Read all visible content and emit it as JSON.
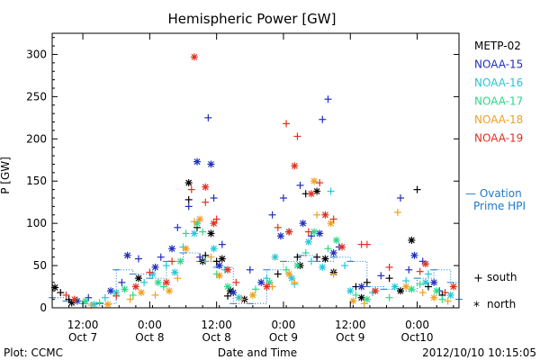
{
  "chart_data": {
    "type": "scatter",
    "title": "Hemispheric Power [GW]",
    "ylabel": "P [GW]",
    "xlabel": "Date and Time",
    "ylim": [
      0,
      325
    ],
    "xlim": [
      "2012-10-07 06:30",
      "2012-10-10 07:30"
    ],
    "yticks": [
      "0",
      "50",
      "100",
      "150",
      "200",
      "250",
      "300"
    ],
    "xtick_labels": [
      {
        "time": "2012-10-07 12:00",
        "line1": "12:00",
        "line2": "Oct 7"
      },
      {
        "time": "2012-10-08 00:00",
        "line1": "0:00",
        "line2": "Oct 8"
      },
      {
        "time": "2012-10-08 12:00",
        "line1": "12:00",
        "line2": "Oct 8"
      },
      {
        "time": "2012-10-09 00:00",
        "line1": "0:00",
        "line2": "Oct 9"
      },
      {
        "time": "2012-10-09 12:00",
        "line1": "12:00",
        "line2": "Oct 9"
      },
      {
        "time": "2012-10-10 00:00",
        "line1": "0:00",
        "line2": "Oct10"
      }
    ],
    "grid": false,
    "legend_placement": "right",
    "series": [
      {
        "name": "METP-02",
        "color": "#000000",
        "south": [
          [
            "2012-10-07 08:00",
            18
          ],
          [
            "2012-10-07 09:30",
            10
          ],
          [
            "2012-10-08 07:00",
            128
          ],
          [
            "2012-10-08 08:30",
            95
          ],
          [
            "2012-10-08 10:00",
            62
          ],
          [
            "2012-10-08 12:00",
            55
          ],
          [
            "2012-10-08 14:00",
            14
          ],
          [
            "2012-10-08 23:00",
            40
          ],
          [
            "2012-10-09 01:00",
            90
          ],
          [
            "2012-10-09 02:30",
            60
          ],
          [
            "2012-10-09 04:00",
            135
          ],
          [
            "2012-10-09 06:00",
            60
          ],
          [
            "2012-10-09 13:00",
            25
          ],
          [
            "2012-10-09 15:00",
            30
          ],
          [
            "2012-10-09 19:00",
            35
          ],
          [
            "2012-10-10 00:00",
            140
          ],
          [
            "2012-10-10 02:00",
            25
          ],
          [
            "2012-10-10 04:30",
            15
          ]
        ],
        "north": [
          [
            "2012-10-07 07:00",
            24
          ],
          [
            "2012-10-07 10:00",
            6
          ],
          [
            "2012-10-07 22:00",
            35
          ],
          [
            "2012-10-08 07:00",
            148
          ],
          [
            "2012-10-08 09:30",
            55
          ],
          [
            "2012-10-08 11:00",
            88
          ],
          [
            "2012-10-08 13:00",
            58
          ],
          [
            "2012-10-08 14:30",
            20
          ],
          [
            "2012-10-08 17:00",
            10
          ],
          [
            "2012-10-09 03:00",
            50
          ],
          [
            "2012-10-09 06:00",
            138
          ],
          [
            "2012-10-09 07:30",
            58
          ],
          [
            "2012-10-09 09:00",
            42
          ],
          [
            "2012-10-09 14:00",
            12
          ],
          [
            "2012-10-09 21:00",
            20
          ],
          [
            "2012-10-09 23:00",
            80
          ]
        ]
      },
      {
        "name": "NOAA-15",
        "color": "#1f2fbf",
        "south": [
          [
            "2012-10-07 13:00",
            12
          ],
          [
            "2012-10-07 19:00",
            30
          ],
          [
            "2012-10-07 22:00",
            58
          ],
          [
            "2012-10-08 02:00",
            60
          ],
          [
            "2012-10-08 05:00",
            95
          ],
          [
            "2012-10-08 07:00",
            120
          ],
          [
            "2012-10-08 09:00",
            60
          ],
          [
            "2012-10-08 10:30",
            225
          ],
          [
            "2012-10-08 11:30",
            130
          ],
          [
            "2012-10-08 13:00",
            75
          ],
          [
            "2012-10-08 18:00",
            45
          ],
          [
            "2012-10-08 22:00",
            110
          ],
          [
            "2012-10-09 00:00",
            130
          ],
          [
            "2012-10-09 03:00",
            145
          ],
          [
            "2012-10-09 05:00",
            85
          ],
          [
            "2012-10-09 07:00",
            223
          ],
          [
            "2012-10-09 08:00",
            247
          ],
          [
            "2012-10-09 10:00",
            72
          ],
          [
            "2012-10-09 17:30",
            38
          ],
          [
            "2012-10-09 21:00",
            130
          ],
          [
            "2012-10-09 22:30",
            45
          ],
          [
            "2012-10-10 01:00",
            55
          ],
          [
            "2012-10-10 04:00",
            20
          ]
        ],
        "north": [
          [
            "2012-10-07 11:00",
            8
          ],
          [
            "2012-10-07 17:00",
            20
          ],
          [
            "2012-10-07 20:00",
            62
          ],
          [
            "2012-10-08 01:00",
            48
          ],
          [
            "2012-10-08 04:00",
            70
          ],
          [
            "2012-10-08 08:30",
            173
          ],
          [
            "2012-10-08 11:00",
            170
          ],
          [
            "2012-10-08 12:30",
            50
          ],
          [
            "2012-10-08 15:00",
            18
          ],
          [
            "2012-10-08 20:00",
            30
          ],
          [
            "2012-10-08 23:30",
            85
          ],
          [
            "2012-10-09 03:30",
            100
          ],
          [
            "2012-10-09 06:30",
            88
          ],
          [
            "2012-10-09 09:00",
            65
          ],
          [
            "2012-10-09 14:00",
            25
          ],
          [
            "2012-10-09 23:30",
            62
          ],
          [
            "2012-10-10 03:00",
            30
          ]
        ]
      },
      {
        "name": "NOAA-16",
        "color": "#22c8d8",
        "south": [
          [
            "2012-10-07 12:00",
            5
          ],
          [
            "2012-10-07 16:00",
            12
          ],
          [
            "2012-10-07 23:00",
            30
          ],
          [
            "2012-10-08 03:00",
            50
          ],
          [
            "2012-10-08 06:00",
            72
          ],
          [
            "2012-10-08 10:00",
            55
          ],
          [
            "2012-10-08 13:30",
            45
          ],
          [
            "2012-10-08 21:00",
            35
          ],
          [
            "2012-10-09 02:00",
            28
          ],
          [
            "2012-10-09 05:00",
            55
          ],
          [
            "2012-10-09 08:30",
            138
          ],
          [
            "2012-10-09 11:00",
            50
          ],
          [
            "2012-10-09 16:00",
            18
          ],
          [
            "2012-10-09 22:00",
            32
          ],
          [
            "2012-10-10 02:00",
            40
          ],
          [
            "2012-10-10 05:00",
            18
          ]
        ],
        "north": [
          [
            "2012-10-07 14:00",
            4
          ],
          [
            "2012-10-07 18:00",
            18
          ],
          [
            "2012-10-08 00:30",
            40
          ],
          [
            "2012-10-08 04:30",
            42
          ],
          [
            "2012-10-08 08:00",
            88
          ],
          [
            "2012-10-08 11:30",
            70
          ],
          [
            "2012-10-08 16:00",
            12
          ],
          [
            "2012-10-08 22:30",
            60
          ],
          [
            "2012-10-09 01:30",
            35
          ],
          [
            "2012-10-09 04:30",
            78
          ],
          [
            "2012-10-09 07:00",
            48
          ],
          [
            "2012-10-09 12:00",
            20
          ],
          [
            "2012-10-09 20:00",
            25
          ],
          [
            "2012-10-10 01:30",
            30
          ],
          [
            "2012-10-10 06:00",
            15
          ]
        ]
      },
      {
        "name": "NOAA-17",
        "color": "#2bd98a",
        "south": [
          [
            "2012-10-07 15:00",
            6
          ],
          [
            "2012-10-07 21:00",
            15
          ],
          [
            "2012-10-08 02:30",
            25
          ],
          [
            "2012-10-08 06:30",
            88
          ],
          [
            "2012-10-08 09:30",
            90
          ],
          [
            "2012-10-08 12:00",
            40
          ],
          [
            "2012-10-08 19:00",
            22
          ],
          [
            "2012-10-09 00:30",
            45
          ],
          [
            "2012-10-09 04:00",
            65
          ],
          [
            "2012-10-09 08:00",
            70
          ],
          [
            "2012-10-09 13:00",
            15
          ],
          [
            "2012-10-09 19:00",
            12
          ],
          [
            "2012-10-10 00:30",
            28
          ],
          [
            "2012-10-10 04:30",
            10
          ]
        ],
        "north": [
          [
            "2012-10-07 12:30",
            8
          ],
          [
            "2012-10-07 19:30",
            22
          ],
          [
            "2012-10-08 01:30",
            30
          ],
          [
            "2012-10-08 05:30",
            55
          ],
          [
            "2012-10-08 08:30",
            100
          ],
          [
            "2012-10-08 14:00",
            25
          ],
          [
            "2012-10-08 21:30",
            30
          ],
          [
            "2012-10-09 02:30",
            50
          ],
          [
            "2012-10-09 05:30",
            90
          ],
          [
            "2012-10-09 09:30",
            80
          ],
          [
            "2012-10-09 15:00",
            10
          ],
          [
            "2012-10-09 23:00",
            22
          ],
          [
            "2012-10-10 03:30",
            20
          ]
        ]
      },
      {
        "name": "NOAA-18",
        "color": "#f0a020",
        "south": [
          [
            "2012-10-07 13:30",
            3
          ],
          [
            "2012-10-07 20:30",
            10
          ],
          [
            "2012-10-08 01:00",
            15
          ],
          [
            "2012-10-08 05:00",
            35
          ],
          [
            "2012-10-08 08:00",
            102
          ],
          [
            "2012-10-08 11:00",
            60
          ],
          [
            "2012-10-08 16:30",
            10
          ],
          [
            "2012-10-08 22:00",
            25
          ],
          [
            "2012-10-09 02:00",
            30
          ],
          [
            "2012-10-09 06:00",
            110
          ],
          [
            "2012-10-09 09:00",
            40
          ],
          [
            "2012-10-09 14:30",
            5
          ],
          [
            "2012-10-09 20:30",
            113
          ],
          [
            "2012-10-10 01:00",
            18
          ],
          [
            "2012-10-10 05:30",
            8
          ]
        ],
        "north": [
          [
            "2012-10-07 16:30",
            4
          ],
          [
            "2012-10-07 22:30",
            18
          ],
          [
            "2012-10-08 03:30",
            20
          ],
          [
            "2012-10-08 06:30",
            70
          ],
          [
            "2012-10-08 09:00",
            105
          ],
          [
            "2012-10-08 12:30",
            38
          ],
          [
            "2012-10-08 18:30",
            15
          ],
          [
            "2012-10-09 01:00",
            40
          ],
          [
            "2012-10-09 05:30",
            150
          ],
          [
            "2012-10-09 08:30",
            100
          ],
          [
            "2012-10-09 12:30",
            8
          ],
          [
            "2012-10-09 22:00",
            25
          ],
          [
            "2012-10-10 03:00",
            12
          ]
        ]
      },
      {
        "name": "NOAA-19",
        "color": "#e0301e",
        "south": [
          [
            "2012-10-07 09:00",
            15
          ],
          [
            "2012-10-07 18:00",
            14
          ],
          [
            "2012-10-08 00:00",
            42
          ],
          [
            "2012-10-08 04:00",
            55
          ],
          [
            "2012-10-08 07:30",
            140
          ],
          [
            "2012-10-08 10:00",
            125
          ],
          [
            "2012-10-08 12:00",
            105
          ],
          [
            "2012-10-08 15:30",
            30
          ],
          [
            "2012-10-08 23:00",
            95
          ],
          [
            "2012-10-09 00:30",
            218
          ],
          [
            "2012-10-09 02:30",
            203
          ],
          [
            "2012-10-09 04:30",
            90
          ],
          [
            "2012-10-09 06:30",
            148
          ],
          [
            "2012-10-09 09:00",
            105
          ],
          [
            "2012-10-09 14:00",
            75
          ],
          [
            "2012-10-09 15:00",
            75
          ],
          [
            "2012-10-09 19:00",
            48
          ],
          [
            "2012-10-10 00:30",
            43
          ],
          [
            "2012-10-10 05:00",
            18
          ]
        ],
        "north": [
          [
            "2012-10-07 10:30",
            10
          ],
          [
            "2012-10-07 21:30",
            25
          ],
          [
            "2012-10-08 03:00",
            30
          ],
          [
            "2012-10-08 08:00",
            297
          ],
          [
            "2012-10-08 10:00",
            143
          ],
          [
            "2012-10-08 11:30",
            100
          ],
          [
            "2012-10-08 14:00",
            45
          ],
          [
            "2012-10-08 21:00",
            25
          ],
          [
            "2012-10-09 01:00",
            90
          ],
          [
            "2012-10-09 02:00",
            168
          ],
          [
            "2012-10-09 05:00",
            135
          ],
          [
            "2012-10-09 07:30",
            110
          ],
          [
            "2012-10-09 10:30",
            72
          ],
          [
            "2012-10-09 16:30",
            20
          ],
          [
            "2012-10-10 01:30",
            52
          ],
          [
            "2012-10-10 06:30",
            25
          ]
        ]
      }
    ],
    "ovation": {
      "label_line1": "— Ovation",
      "label_line2": "Prime HPI",
      "color": "#1f78c8",
      "points": [
        [
          "2012-10-07 06:30",
          12
        ],
        [
          "2012-10-07 09:00",
          8
        ],
        [
          "2012-10-07 12:00",
          5
        ],
        [
          "2012-10-07 15:00",
          5
        ],
        [
          "2012-10-07 18:00",
          45
        ],
        [
          "2012-10-07 21:00",
          40
        ],
        [
          "2012-10-08 00:00",
          35
        ],
        [
          "2012-10-08 03:00",
          55
        ],
        [
          "2012-10-08 06:00",
          65
        ],
        [
          "2012-10-08 09:00",
          55
        ],
        [
          "2012-10-08 12:00",
          48
        ],
        [
          "2012-10-08 15:00",
          5
        ],
        [
          "2012-10-08 18:00",
          5
        ],
        [
          "2012-10-08 21:00",
          45
        ],
        [
          "2012-10-09 00:00",
          55
        ],
        [
          "2012-10-09 03:00",
          62
        ],
        [
          "2012-10-09 06:00",
          55
        ],
        [
          "2012-10-09 09:00",
          60
        ],
        [
          "2012-10-09 12:00",
          55
        ],
        [
          "2012-10-09 15:00",
          25
        ],
        [
          "2012-10-09 18:00",
          22
        ],
        [
          "2012-10-09 21:00",
          20
        ],
        [
          "2012-10-10 00:00",
          35
        ],
        [
          "2012-10-10 03:00",
          45
        ],
        [
          "2012-10-10 06:00",
          30
        ],
        [
          "2012-10-10 07:30",
          10
        ]
      ]
    },
    "symbol_key": {
      "south_symbol": "+",
      "south_label": "south",
      "north_symbol": "*",
      "north_label": "north"
    }
  },
  "footer": {
    "left": "Plot: CCMC",
    "right": "2012/10/10 10:15:05"
  }
}
